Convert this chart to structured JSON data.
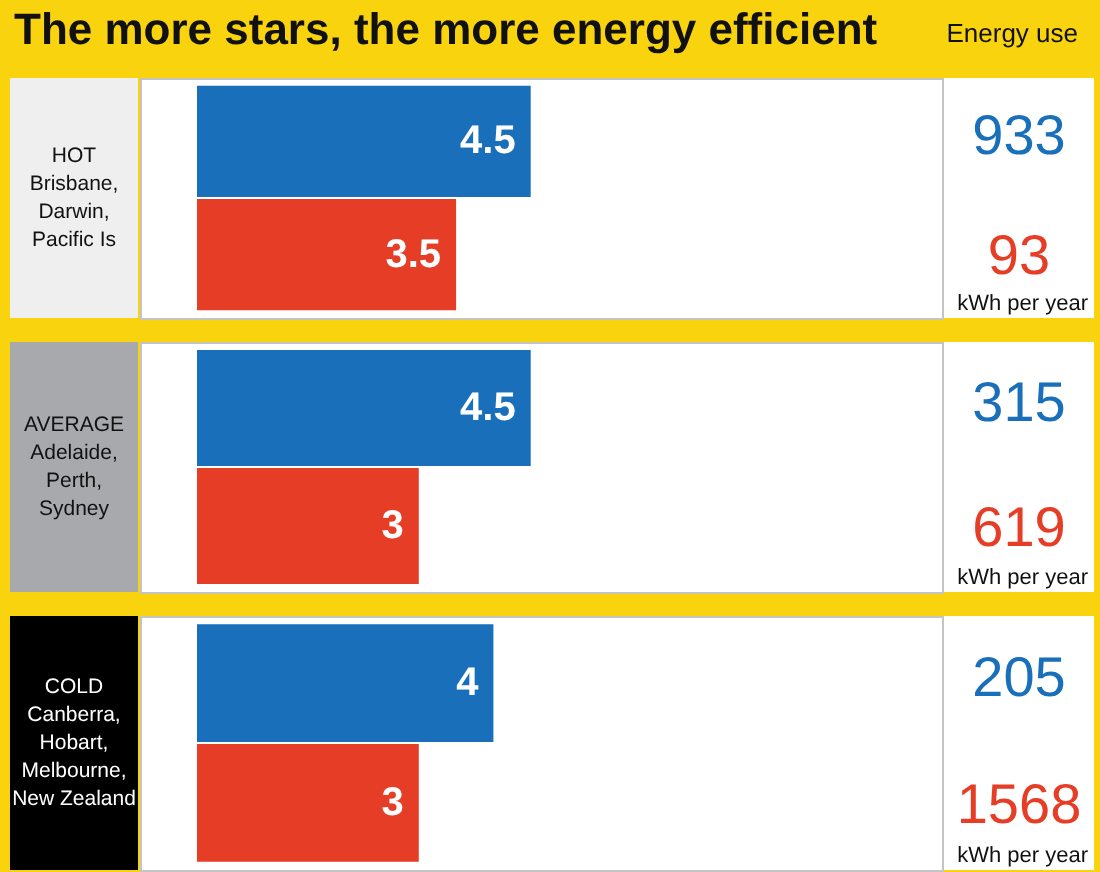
{
  "chart_data": [
    {
      "type": "other",
      "title": "The more stars, the more energy efficient",
      "annotations": [
        "Energy use"
      ]
    },
    {
      "type": "bar",
      "orientation": "horizontal",
      "ylabel": "HOT\nBrisbane,\nDarwin,\nPacific Is",
      "categories": [
        null,
        null
      ],
      "values": [
        4.5,
        3.5
      ],
      "colors": [
        "#1a6fba",
        "#e63e26"
      ],
      "xlim": [
        0,
        10
      ],
      "data_labels": true,
      "tick_labels": false,
      "annotations": [
        "933",
        "93",
        "kWh per year"
      ]
    },
    {
      "type": "bar",
      "orientation": "horizontal",
      "ylabel": "AVERAGE\nAdelaide,\nPerth,\nSydney",
      "categories": [
        null,
        null
      ],
      "values": [
        4.5,
        3
      ],
      "colors": [
        "#1a6fba",
        "#e63e26"
      ],
      "xlim": [
        0,
        10
      ],
      "data_labels": true,
      "tick_labels": false,
      "annotations": [
        "315",
        "619",
        "kWh per year"
      ]
    },
    {
      "type": "bar",
      "orientation": "horizontal",
      "ylabel": "COLD\nCanberra,\nHobart,\nMelbourne,\nNew Zealand",
      "categories": [
        null,
        null
      ],
      "values": [
        4,
        3
      ],
      "colors": [
        "#1a6fba",
        "#e63e26"
      ],
      "xlim": [
        0,
        10
      ],
      "data_labels": true,
      "tick_labels": false,
      "annotations": [
        "205",
        "1568",
        "kWh per year"
      ]
    }
  ]
}
